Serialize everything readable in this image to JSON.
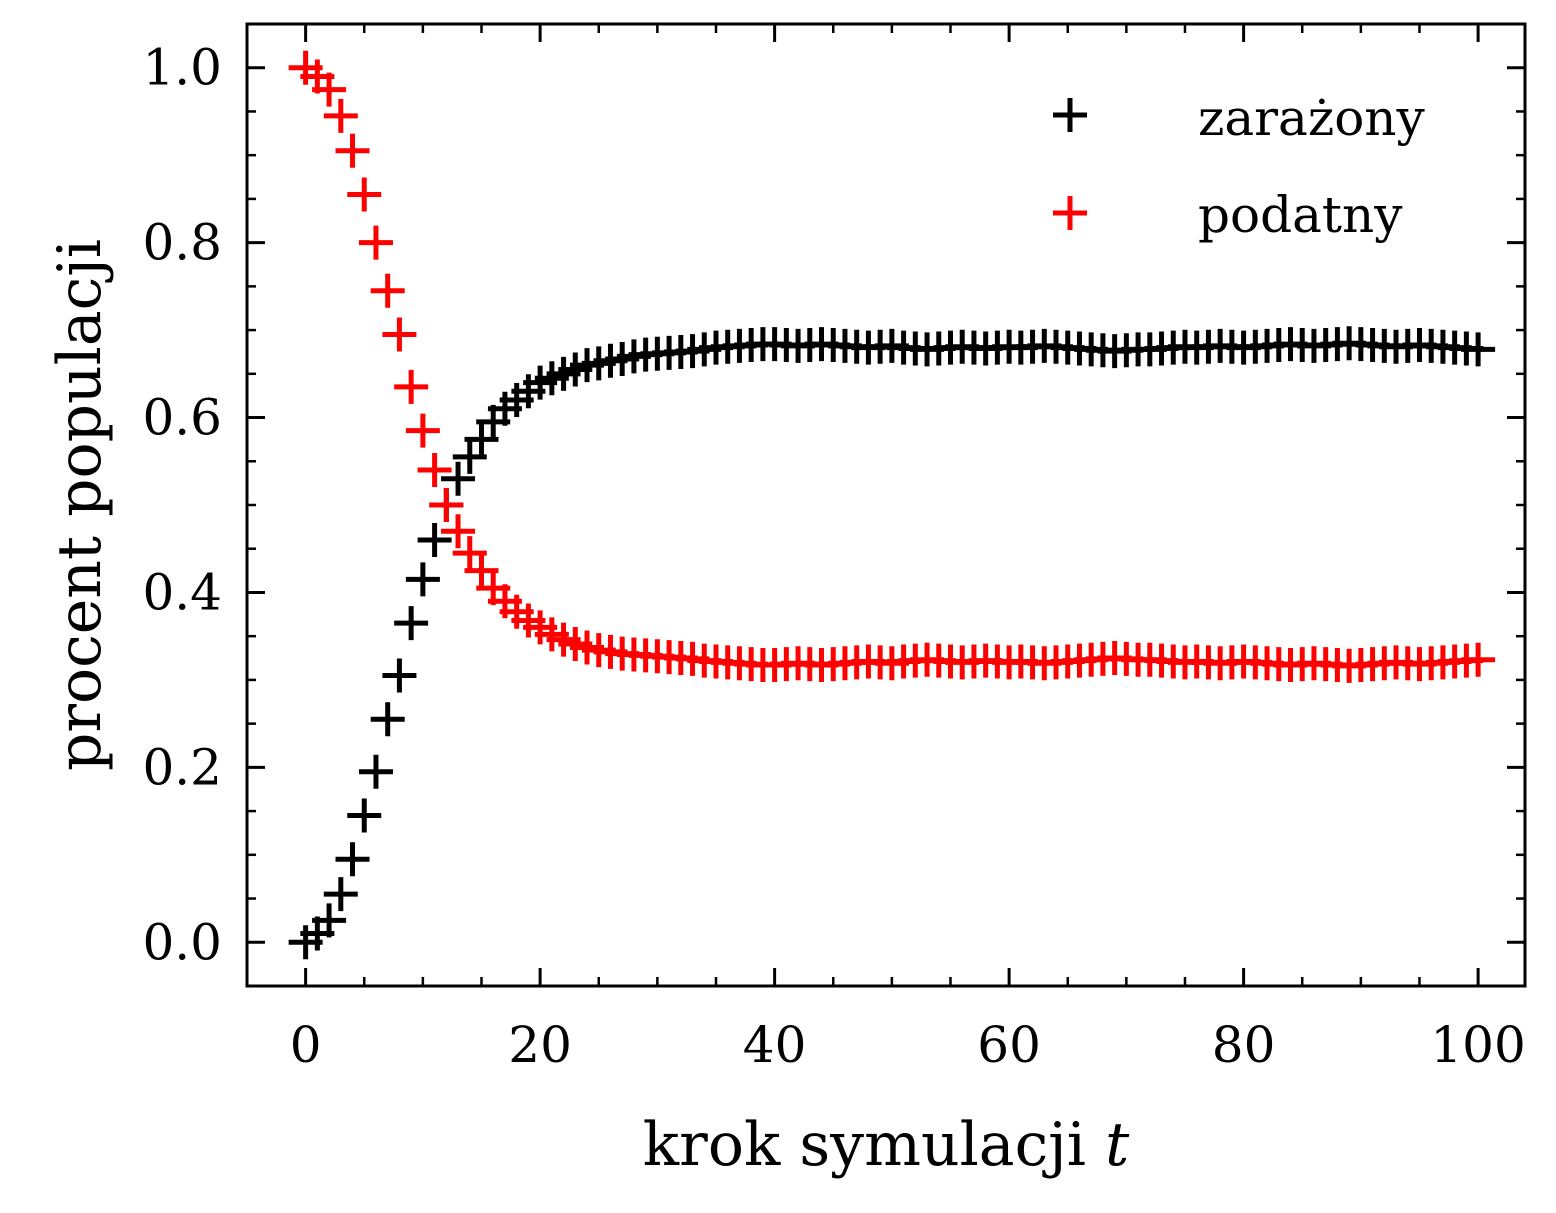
{
  "chart_data": {
    "type": "scatter",
    "title": "",
    "xlabel": "krok symulacji",
    "xlabel_var": "t",
    "ylabel": "procent populacji",
    "xlim": [
      -5,
      104
    ],
    "ylim": [
      -0.05,
      1.05
    ],
    "x_ticks": [
      0,
      20,
      40,
      60,
      80,
      100
    ],
    "x_tick_labels": [
      "0",
      "20",
      "40",
      "60",
      "80",
      "100"
    ],
    "y_ticks": [
      0.0,
      0.2,
      0.4,
      0.6,
      0.8,
      1.0
    ],
    "y_tick_labels": [
      "0.0",
      "0.2",
      "0.4",
      "0.6",
      "0.8",
      "1.0"
    ],
    "x_minor_step": 5,
    "y_minor_step": 0.05,
    "grid": false,
    "ticks_direction": "in",
    "ticks_on_all_sides": true,
    "legend_position": "top-right",
    "marker": "+",
    "series": [
      {
        "name": "zarażony",
        "color": "#000000",
        "x": [
          0,
          1,
          2,
          3,
          4,
          5,
          6,
          7,
          8,
          9,
          10,
          11,
          12,
          13,
          14,
          15,
          16,
          17,
          18,
          19,
          20,
          21,
          22,
          23,
          24,
          25,
          26,
          27,
          28,
          29,
          30,
          31,
          32,
          33,
          34,
          35,
          36,
          37,
          38,
          39,
          40,
          41,
          42,
          43,
          44,
          45,
          46,
          47,
          48,
          49,
          50,
          51,
          52,
          53,
          54,
          55,
          56,
          57,
          58,
          59,
          60,
          61,
          62,
          63,
          64,
          65,
          66,
          67,
          68,
          69,
          70,
          71,
          72,
          73,
          74,
          75,
          76,
          77,
          78,
          79,
          80,
          81,
          82,
          83,
          84,
          85,
          86,
          87,
          88,
          89,
          90,
          91,
          92,
          93,
          94,
          95,
          96,
          97,
          98,
          99,
          100
        ],
        "y": [
          0.0,
          0.01,
          0.025,
          0.055,
          0.095,
          0.145,
          0.195,
          0.255,
          0.305,
          0.365,
          0.415,
          0.46,
          0.5,
          0.53,
          0.555,
          0.575,
          0.595,
          0.61,
          0.62,
          0.63,
          0.64,
          0.645,
          0.65,
          0.655,
          0.66,
          0.662,
          0.665,
          0.667,
          0.67,
          0.672,
          0.673,
          0.674,
          0.675,
          0.676,
          0.678,
          0.68,
          0.681,
          0.682,
          0.683,
          0.684,
          0.684,
          0.683,
          0.682,
          0.683,
          0.684,
          0.683,
          0.682,
          0.681,
          0.68,
          0.681,
          0.682,
          0.68,
          0.679,
          0.678,
          0.679,
          0.68,
          0.681,
          0.68,
          0.679,
          0.68,
          0.681,
          0.68,
          0.681,
          0.682,
          0.681,
          0.68,
          0.679,
          0.678,
          0.677,
          0.676,
          0.677,
          0.678,
          0.678,
          0.679,
          0.68,
          0.681,
          0.68,
          0.681,
          0.682,
          0.681,
          0.68,
          0.681,
          0.682,
          0.683,
          0.684,
          0.683,
          0.682,
          0.683,
          0.684,
          0.685,
          0.684,
          0.683,
          0.682,
          0.681,
          0.682,
          0.683,
          0.682,
          0.681,
          0.68,
          0.679,
          0.678
        ]
      },
      {
        "name": "podatny",
        "color": "#ff0000",
        "x": [
          0,
          1,
          2,
          3,
          4,
          5,
          6,
          7,
          8,
          9,
          10,
          11,
          12,
          13,
          14,
          15,
          16,
          17,
          18,
          19,
          20,
          21,
          22,
          23,
          24,
          25,
          26,
          27,
          28,
          29,
          30,
          31,
          32,
          33,
          34,
          35,
          36,
          37,
          38,
          39,
          40,
          41,
          42,
          43,
          44,
          45,
          46,
          47,
          48,
          49,
          50,
          51,
          52,
          53,
          54,
          55,
          56,
          57,
          58,
          59,
          60,
          61,
          62,
          63,
          64,
          65,
          66,
          67,
          68,
          69,
          70,
          71,
          72,
          73,
          74,
          75,
          76,
          77,
          78,
          79,
          80,
          81,
          82,
          83,
          84,
          85,
          86,
          87,
          88,
          89,
          90,
          91,
          92,
          93,
          94,
          95,
          96,
          97,
          98,
          99,
          100
        ],
        "y": [
          1.0,
          0.99,
          0.975,
          0.945,
          0.905,
          0.855,
          0.8,
          0.745,
          0.695,
          0.635,
          0.585,
          0.54,
          0.5,
          0.47,
          0.445,
          0.425,
          0.405,
          0.39,
          0.378,
          0.368,
          0.36,
          0.352,
          0.346,
          0.341,
          0.337,
          0.334,
          0.332,
          0.33,
          0.329,
          0.328,
          0.327,
          0.326,
          0.325,
          0.324,
          0.322,
          0.321,
          0.32,
          0.319,
          0.318,
          0.317,
          0.317,
          0.318,
          0.319,
          0.318,
          0.317,
          0.318,
          0.319,
          0.32,
          0.321,
          0.32,
          0.319,
          0.321,
          0.322,
          0.323,
          0.322,
          0.321,
          0.32,
          0.321,
          0.322,
          0.321,
          0.32,
          0.321,
          0.32,
          0.319,
          0.32,
          0.321,
          0.322,
          0.323,
          0.324,
          0.325,
          0.324,
          0.323,
          0.323,
          0.322,
          0.321,
          0.32,
          0.321,
          0.32,
          0.319,
          0.32,
          0.321,
          0.32,
          0.319,
          0.318,
          0.317,
          0.318,
          0.319,
          0.318,
          0.317,
          0.316,
          0.317,
          0.318,
          0.319,
          0.32,
          0.319,
          0.318,
          0.319,
          0.32,
          0.321,
          0.322,
          0.323
        ]
      }
    ]
  }
}
